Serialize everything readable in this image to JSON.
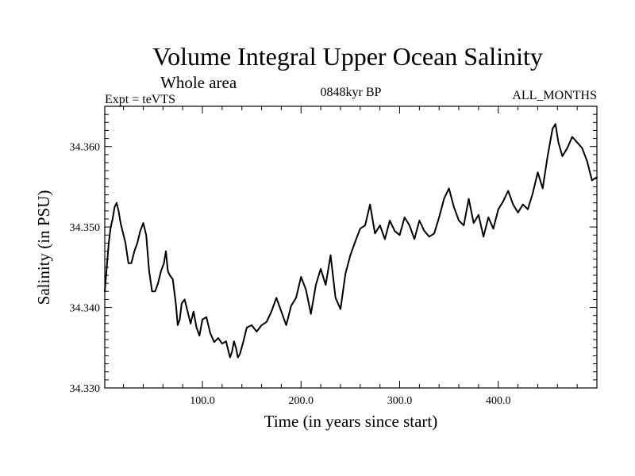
{
  "chart_data": {
    "type": "line",
    "title": "Volume Integral Upper Ocean Salinity",
    "subtitle": "Whole area",
    "experiment_label": "Expt = teVTS",
    "period_label": "0848kyr BP",
    "months_label": "ALL_MONTHS",
    "xlabel": "Time (in years since start)",
    "ylabel": "Salinity (in PSU)",
    "xlim": [
      1,
      500
    ],
    "ylim": [
      34.33,
      34.365
    ],
    "x_ticks": [
      100,
      200,
      300,
      400
    ],
    "x_tick_labels": [
      "100.0",
      "200.0",
      "300.0",
      "400.0"
    ],
    "y_ticks": [
      34.33,
      34.34,
      34.35,
      34.36
    ],
    "y_tick_labels": [
      "34.330",
      "34.340",
      "34.350",
      "34.360"
    ],
    "grid": false,
    "series": [
      {
        "name": "salinity",
        "color": "#000000",
        "x": [
          1,
          3,
          5,
          7,
          9,
          11,
          13,
          15,
          17,
          19,
          22,
          25,
          28,
          31,
          34,
          37,
          40,
          43,
          46,
          49,
          52,
          55,
          58,
          61,
          63,
          65,
          67,
          70,
          73,
          75,
          77,
          79,
          82,
          85,
          88,
          91,
          94,
          97,
          100,
          104,
          108,
          112,
          116,
          120,
          124,
          128,
          130,
          132,
          134,
          136,
          138,
          141,
          145,
          150,
          155,
          160,
          165,
          170,
          175,
          180,
          185,
          190,
          195,
          200,
          205,
          210,
          215,
          220,
          225,
          230,
          235,
          240,
          245,
          250,
          255,
          260,
          265,
          270,
          275,
          280,
          285,
          290,
          295,
          300,
          305,
          310,
          315,
          320,
          325,
          330,
          335,
          340,
          345,
          350,
          355,
          360,
          365,
          370,
          375,
          380,
          385,
          390,
          395,
          400,
          405,
          410,
          415,
          420,
          425,
          430,
          435,
          440,
          445,
          450,
          455,
          458,
          461,
          465,
          470,
          475,
          480,
          485,
          490,
          495,
          500
        ],
        "values": [
          34.342,
          34.345,
          34.348,
          34.35,
          34.351,
          34.3525,
          34.353,
          34.352,
          34.3505,
          34.3495,
          34.348,
          34.3455,
          34.3455,
          34.347,
          34.348,
          34.3495,
          34.3505,
          34.349,
          34.3445,
          34.342,
          34.342,
          34.343,
          34.3445,
          34.3455,
          34.347,
          34.3445,
          34.344,
          34.3435,
          34.3405,
          34.3378,
          34.3385,
          34.3405,
          34.341,
          34.3395,
          34.338,
          34.3395,
          34.3375,
          34.3365,
          34.3385,
          34.3388,
          34.3368,
          34.3357,
          34.3362,
          34.3355,
          34.3358,
          34.3338,
          34.3345,
          34.3358,
          34.335,
          34.3338,
          34.3342,
          34.3355,
          34.3375,
          34.3378,
          34.337,
          34.3378,
          34.3382,
          34.3395,
          34.3412,
          34.3395,
          34.3378,
          34.3402,
          34.3412,
          34.3438,
          34.3422,
          34.3392,
          34.3428,
          34.3448,
          34.3428,
          34.3465,
          34.3412,
          34.3398,
          34.3442,
          34.3465,
          34.3482,
          34.3498,
          34.3502,
          34.3528,
          34.3492,
          34.3502,
          34.3485,
          34.3508,
          34.3495,
          34.349,
          34.3512,
          34.3502,
          34.3485,
          34.3508,
          34.3495,
          34.3488,
          34.3492,
          34.3512,
          34.3535,
          34.3548,
          34.3525,
          34.3508,
          34.3502,
          34.3535,
          34.3505,
          34.3515,
          34.3488,
          34.3512,
          34.3498,
          34.3522,
          34.3532,
          34.3545,
          34.3528,
          34.3518,
          34.3528,
          34.3522,
          34.3542,
          34.3568,
          34.3548,
          34.3588,
          34.3622,
          34.3628,
          34.3605,
          34.3588,
          34.3598,
          34.3612,
          34.3605,
          34.3598,
          34.3582,
          34.3558,
          34.3562
        ]
      }
    ]
  }
}
